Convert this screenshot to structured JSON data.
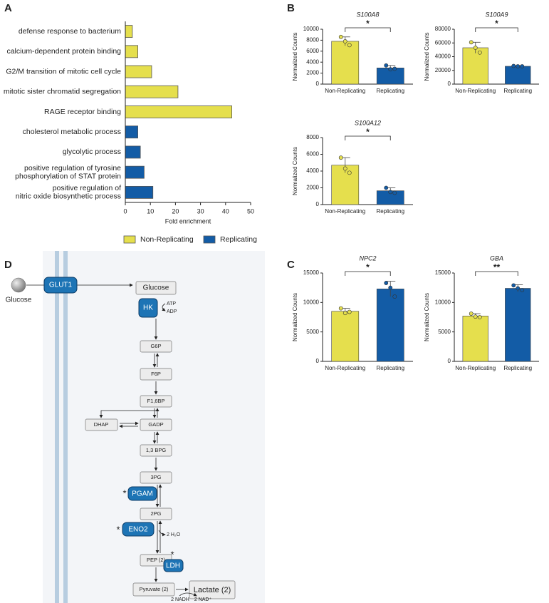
{
  "chart_data": [
    {
      "type": "bar",
      "orientation": "horizontal",
      "panel_label": "A",
      "categories": [
        "defense response to bacterium",
        "calcium-dependent protein binding",
        "G2/M transition of mitotic cell cycle",
        "mitotic sister chromatid segregation",
        "RAGE receptor binding",
        "cholesterol metabolic process",
        "glycolytic process",
        "positive regulation of tyrosine\nphosphorylation of STAT protein",
        "positive regulation of\nnitric oxide biosynthetic process"
      ],
      "series": [
        {
          "name": "Non-Replicating",
          "color": "#e5df4d",
          "values": [
            2.8,
            5,
            10.5,
            21,
            42.5,
            null,
            null,
            null,
            null
          ]
        },
        {
          "name": "Replicating",
          "color": "#135ca6",
          "values": [
            null,
            null,
            null,
            null,
            null,
            5,
            6,
            7.5,
            11
          ]
        }
      ],
      "x_label": "Fold enrichment",
      "xlim": [
        0,
        50
      ],
      "xticks": [
        0,
        10,
        20,
        30,
        40,
        50
      ],
      "legend": "bottom"
    },
    {
      "type": "bar",
      "panel_label": "B",
      "title": "S100A8",
      "categories": [
        "Non-Replicating",
        "Replicating"
      ],
      "values": [
        7800,
        2950
      ],
      "errors": [
        800,
        450
      ],
      "points": [
        [
          8600,
          7800,
          7100
        ],
        [
          3400,
          2700,
          2800
        ]
      ],
      "colors": [
        "#e5df4d",
        "#135ca6"
      ],
      "y_label": "Normalized Counts",
      "ylim": [
        0,
        10000
      ],
      "yticks": [
        0,
        2000,
        4000,
        6000,
        8000,
        10000
      ],
      "significance": "*"
    },
    {
      "type": "bar",
      "title": "S100A9",
      "categories": [
        "Non-Replicating",
        "Replicating"
      ],
      "values": [
        53000,
        26000
      ],
      "errors": [
        8000,
        1000
      ],
      "points": [
        [
          61000,
          53000,
          46000
        ],
        [
          26500,
          26000,
          26000
        ]
      ],
      "colors": [
        "#e5df4d",
        "#135ca6"
      ],
      "y_label": "Normalized Counts",
      "ylim": [
        0,
        80000
      ],
      "yticks": [
        0,
        20000,
        40000,
        60000,
        80000
      ],
      "significance": "*"
    },
    {
      "type": "bar",
      "title": "S100A12",
      "categories": [
        "Non-Replicating",
        "Replicating"
      ],
      "values": [
        4700,
        1650
      ],
      "errors": [
        900,
        350
      ],
      "points": [
        [
          5600,
          4300,
          3800
        ],
        [
          2000,
          1500,
          1400
        ]
      ],
      "colors": [
        "#e5df4d",
        "#135ca6"
      ],
      "y_label": "Normalized Counts",
      "ylim": [
        0,
        8000
      ],
      "yticks": [
        0,
        2000,
        4000,
        6000,
        8000
      ],
      "significance": "*"
    },
    {
      "type": "bar",
      "panel_label": "C",
      "title": "NPC2",
      "categories": [
        "Non-Replicating",
        "Replicating"
      ],
      "values": [
        8500,
        12300
      ],
      "errors": [
        500,
        1300
      ],
      "points": [
        [
          9000,
          8200,
          8400
        ],
        [
          13300,
          12500,
          11000
        ]
      ],
      "colors": [
        "#e5df4d",
        "#135ca6"
      ],
      "y_label": "Normalized Counts",
      "ylim": [
        0,
        15000
      ],
      "yticks": [
        0,
        5000,
        10000,
        15000
      ],
      "significance": "*"
    },
    {
      "type": "bar",
      "title": "GBA",
      "categories": [
        "Non-Replicating",
        "Replicating"
      ],
      "values": [
        7700,
        12400
      ],
      "errors": [
        400,
        600
      ],
      "points": [
        [
          8100,
          7600,
          7500
        ],
        [
          12900,
          12400,
          12100
        ]
      ],
      "colors": [
        "#e5df4d",
        "#135ca6"
      ],
      "y_label": "Normalized Counts",
      "ylim": [
        0,
        15000
      ],
      "yticks": [
        0,
        5000,
        10000,
        15000
      ],
      "significance": "**"
    }
  ],
  "diagram": {
    "panel_label": "D",
    "outside": "Glucose",
    "transporter": "GLUT1",
    "nodes": [
      "Glucose",
      "G6P",
      "F6P",
      "F1,6BP",
      "DHAP",
      "GADP",
      "1,3 BPG",
      "3PG",
      "2PG",
      "PEP (2)",
      "Pyruvate (2)",
      "Lactate (2)"
    ],
    "enzymes": [
      {
        "label": "HK"
      },
      {
        "label": "PGAM",
        "mark": "*"
      },
      {
        "label": "ENO2",
        "mark": "*"
      },
      {
        "label": "LDH",
        "mark": "*"
      }
    ],
    "cofactors": [
      "ATP",
      "ADP",
      "2 H₂O",
      "2 NADH",
      "2 NAD⁺"
    ]
  }
}
